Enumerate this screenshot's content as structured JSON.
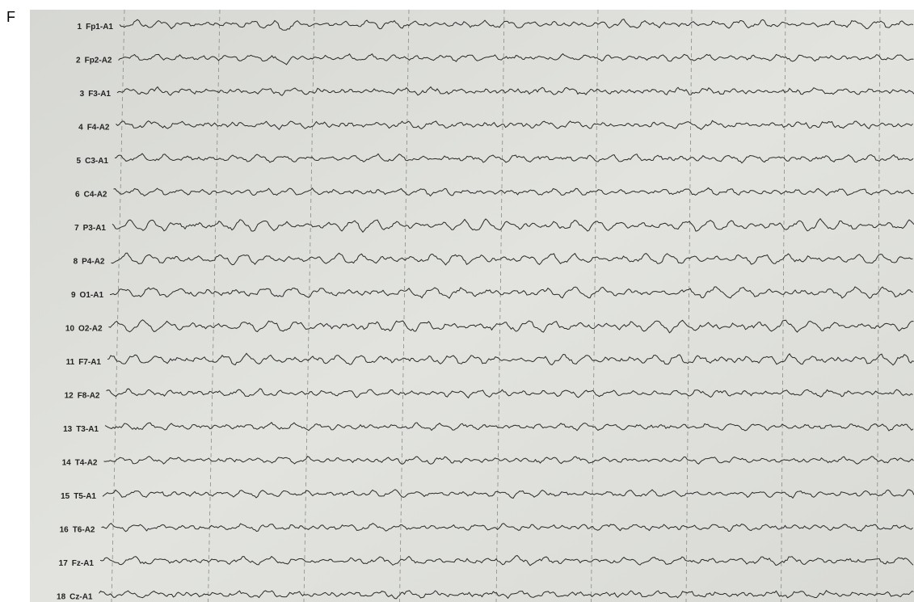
{
  "panel_label": "F",
  "channels": [
    {
      "number": "1",
      "label": "Fp1-A1"
    },
    {
      "number": "2",
      "label": "Fp2-A2"
    },
    {
      "number": "3",
      "label": "F3-A1"
    },
    {
      "number": "4",
      "label": "F4-A2"
    },
    {
      "number": "5",
      "label": "C3-A1"
    },
    {
      "number": "6",
      "label": "C4-A2"
    },
    {
      "number": "7",
      "label": "P3-A1"
    },
    {
      "number": "8",
      "label": "P4-A2"
    },
    {
      "number": "9",
      "label": "O1-A1"
    },
    {
      "number": "10",
      "label": "O2-A2"
    },
    {
      "number": "11",
      "label": "F7-A1"
    },
    {
      "number": "12",
      "label": "F8-A2"
    },
    {
      "number": "13",
      "label": "T3-A1"
    },
    {
      "number": "14",
      "label": "T4-A2"
    },
    {
      "number": "15",
      "label": "T5-A1"
    },
    {
      "number": "16",
      "label": "T6-A2"
    },
    {
      "number": "17",
      "label": "Fz-A1"
    },
    {
      "number": "18",
      "label": "Cz-A1"
    }
  ]
}
